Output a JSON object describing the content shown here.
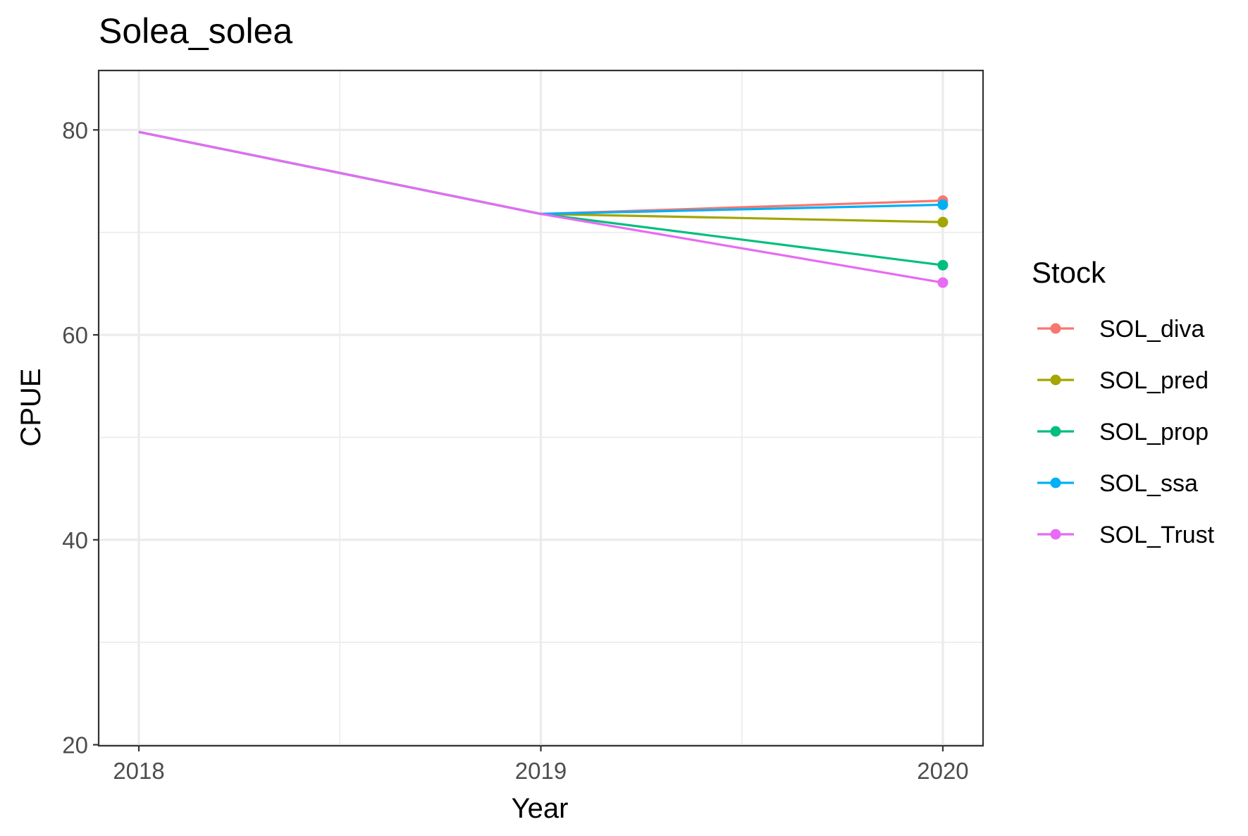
{
  "chart_data": {
    "type": "line",
    "title": "Solea_solea",
    "xlabel": "Year",
    "ylabel": "CPUE",
    "x": [
      2018,
      2019,
      2020
    ],
    "xlim": [
      2017.9,
      2020.1
    ],
    "ylim": [
      19.9,
      85.8
    ],
    "x_ticks": [
      2018,
      2019,
      2020
    ],
    "y_ticks": [
      20,
      40,
      60,
      80
    ],
    "grid": true,
    "legend_title": "Stock",
    "legend_position": "right",
    "series": [
      {
        "name": "SOL_diva",
        "color": "#F8766D",
        "values": [
          79.8,
          71.8,
          73.1
        ],
        "points": [
          false,
          false,
          true
        ]
      },
      {
        "name": "SOL_pred",
        "color": "#A3A500",
        "values": [
          79.8,
          71.8,
          71.0
        ],
        "points": [
          false,
          false,
          true
        ]
      },
      {
        "name": "SOL_prop",
        "color": "#00BF7D",
        "values": [
          79.8,
          71.8,
          66.8
        ],
        "points": [
          false,
          false,
          true
        ]
      },
      {
        "name": "SOL_ssa",
        "color": "#00B0F6",
        "values": [
          79.8,
          71.8,
          72.7
        ],
        "points": [
          false,
          false,
          true
        ]
      },
      {
        "name": "SOL_Trust",
        "color": "#E76BF3",
        "values": [
          79.8,
          71.8,
          65.1
        ],
        "points": [
          false,
          false,
          true
        ]
      }
    ]
  }
}
